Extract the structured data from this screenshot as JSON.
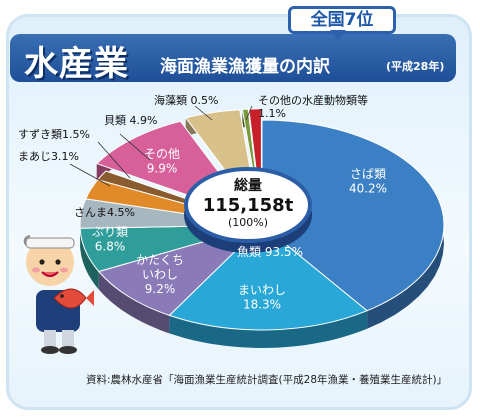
{
  "header": {
    "title": "水産業",
    "subtitle": "海面漁業漁獲量の内訳",
    "note": "(平成28年)",
    "rank_badge": "全国7位"
  },
  "center": {
    "label": "総量",
    "value": "115,158t",
    "percent": "(100%)",
    "fish_total": "魚類 93.5%"
  },
  "source": "資料:農林水産省「海面漁業生産統計調査(平成28年漁業・養殖業生産統計)」",
  "colors": {
    "saba": "#3b7fc4",
    "maiwashi": "#29a8d8",
    "katakuchi": "#8a7ab8",
    "buri": "#2f9e9a",
    "sanma": "#a7b7c0",
    "maaji": "#e08a2a",
    "suzuki": "#8a5b2e",
    "sonota": "#d8609a",
    "kai": "#d8c08a",
    "kaiso": "#7a9a3a",
    "sonota_suisan": "#c8202a"
  },
  "chart_data": {
    "type": "pie",
    "title": "海面漁業漁獲量の内訳",
    "total": 115158,
    "unit": "t",
    "slices": [
      {
        "name": "さば類",
        "value": 40.2,
        "label": "さば類\n40.2%"
      },
      {
        "name": "まいわし",
        "value": 18.3,
        "label": "まいわし\n18.3%"
      },
      {
        "name": "かたくちいわし",
        "value": 9.2,
        "label": "かたくち\nいわし\n9.2%"
      },
      {
        "name": "ぶり類",
        "value": 6.8,
        "label": "ぶり類\n6.8%"
      },
      {
        "name": "さんま",
        "value": 4.5,
        "label": "さんま4.5%"
      },
      {
        "name": "まあじ",
        "value": 3.1,
        "label": "まあじ3.1%"
      },
      {
        "name": "すずき類",
        "value": 1.5,
        "label": "すずき類1.5%"
      },
      {
        "name": "その他",
        "value": 9.9,
        "label": "その他\n9.9%"
      },
      {
        "name": "貝類",
        "value": 4.9,
        "label": "貝類 4.9%"
      },
      {
        "name": "海藻類",
        "value": 0.5,
        "label": "海藻類 0.5%"
      },
      {
        "name": "その他の水産動物類等",
        "value": 1.1,
        "label": "その他の水産動物類等\n1.1%"
      }
    ],
    "group_labels": [
      {
        "name": "魚類",
        "value": 93.5
      }
    ]
  }
}
